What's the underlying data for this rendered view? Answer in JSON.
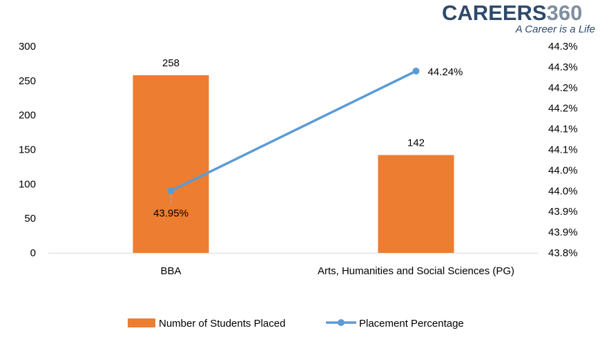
{
  "logo": {
    "text": "CAREERS",
    "number": "360",
    "tagline": "A Career is a Life",
    "color_dark": "#2e4a6b",
    "color_light": "#7f8fa0"
  },
  "chart_data": {
    "type": "bar",
    "categories": [
      "BBA",
      "Arts, Humanities and Social Sciences (PG)"
    ],
    "series": [
      {
        "name": "Number of Students Placed",
        "type": "bar",
        "axis": "left",
        "values": [
          258,
          142
        ],
        "labels": [
          "258",
          "142"
        ],
        "color": "#ED7D31"
      },
      {
        "name": "Placement Percentage",
        "type": "line",
        "axis": "right",
        "values": [
          43.95,
          44.24
        ],
        "labels": [
          "43.95%",
          "44.24%"
        ],
        "color": "#5B9BD5"
      }
    ],
    "ylim_left": [
      0,
      300
    ],
    "left_ticks": [
      "0",
      "50",
      "100",
      "150",
      "200",
      "250",
      "300"
    ],
    "ylim_right": [
      43.8,
      44.3
    ],
    "right_ticks": [
      "43.8%",
      "43.9%",
      "43.9%",
      "44.0%",
      "44.0%",
      "44.1%",
      "44.1%",
      "44.2%",
      "44.2%",
      "44.3%",
      "44.3%"
    ],
    "grid": false,
    "legend_position": "bottom"
  }
}
